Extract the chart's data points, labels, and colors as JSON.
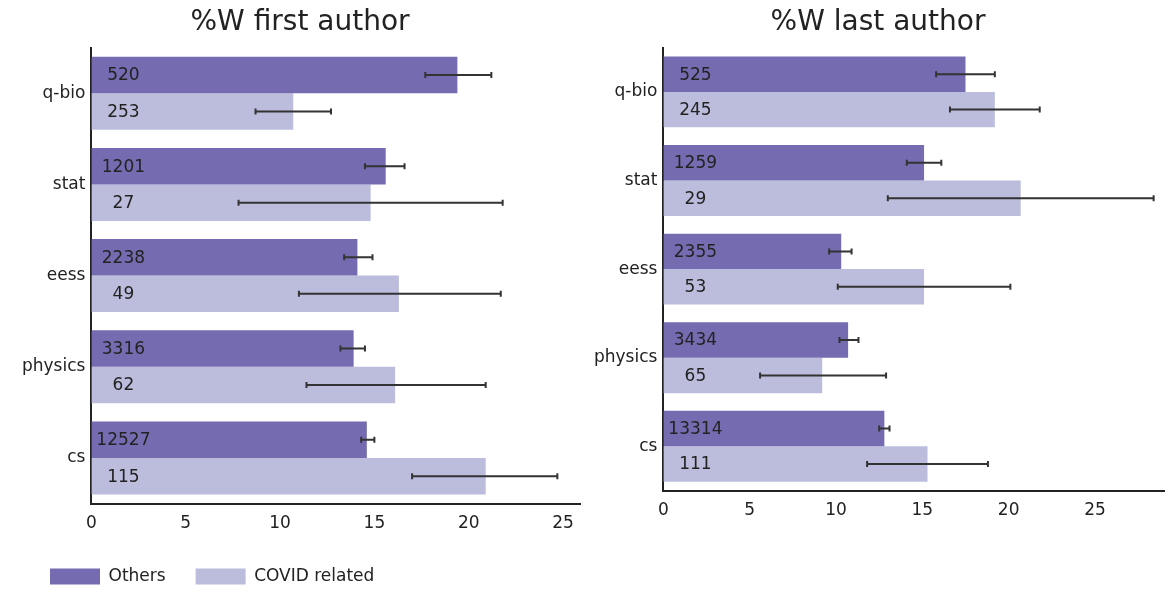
{
  "chart_data": [
    {
      "type": "bar",
      "orientation": "horizontal",
      "title": "%W first author",
      "categories": [
        "q-bio",
        "stat",
        "eess",
        "physics",
        "cs"
      ],
      "xlim": [
        0,
        25.9
      ],
      "xticks": [
        0,
        5,
        10,
        15,
        20,
        25
      ],
      "grid": false,
      "legend": "bottom left",
      "annotations": [
        "520",
        "1201",
        "2238",
        "3316",
        "12527",
        "253",
        "27",
        "49",
        "62",
        "115"
      ],
      "series": [
        {
          "name": "Others",
          "color": "#756bb1",
          "values": [
            19.4,
            15.6,
            14.1,
            13.9,
            14.6
          ],
          "errors": [
            [
              17.7,
              21.2
            ],
            [
              14.5,
              16.6
            ],
            [
              13.4,
              14.9
            ],
            [
              13.2,
              14.5
            ],
            [
              14.3,
              15.0
            ]
          ]
        },
        {
          "name": "COVID related",
          "color": "#bcbddc",
          "values": [
            10.7,
            14.8,
            16.3,
            16.1,
            20.9
          ],
          "errors": [
            [
              8.7,
              12.7
            ],
            [
              7.8,
              21.8
            ],
            [
              11.0,
              21.7
            ],
            [
              11.4,
              20.9
            ],
            [
              17.0,
              24.7
            ]
          ]
        }
      ]
    },
    {
      "type": "bar",
      "orientation": "horizontal",
      "title": "%W last author",
      "categories": [
        "q-bio",
        "stat",
        "eess",
        "physics",
        "cs"
      ],
      "xlim": [
        0,
        29
      ],
      "xticks": [
        0,
        5,
        10,
        15,
        20,
        25
      ],
      "grid": false,
      "annotations": [
        "525",
        "1259",
        "2355",
        "3434",
        "13314",
        "245",
        "29",
        "53",
        "65",
        "111"
      ],
      "series": [
        {
          "color": "#756bb1",
          "values": [
            17.5,
            15.1,
            10.3,
            10.7,
            12.8
          ],
          "errors": [
            [
              15.8,
              19.2
            ],
            [
              14.1,
              16.1
            ],
            [
              9.6,
              10.9
            ],
            [
              10.2,
              11.3
            ],
            [
              12.5,
              13.1
            ]
          ]
        },
        {
          "color": "#bcbddc",
          "values": [
            19.2,
            20.7,
            15.1,
            9.2,
            15.3
          ],
          "errors": [
            [
              16.6,
              21.8
            ],
            [
              13.0,
              28.4
            ],
            [
              10.1,
              20.1
            ],
            [
              5.6,
              12.9
            ],
            [
              11.8,
              18.8
            ]
          ]
        }
      ]
    }
  ]
}
